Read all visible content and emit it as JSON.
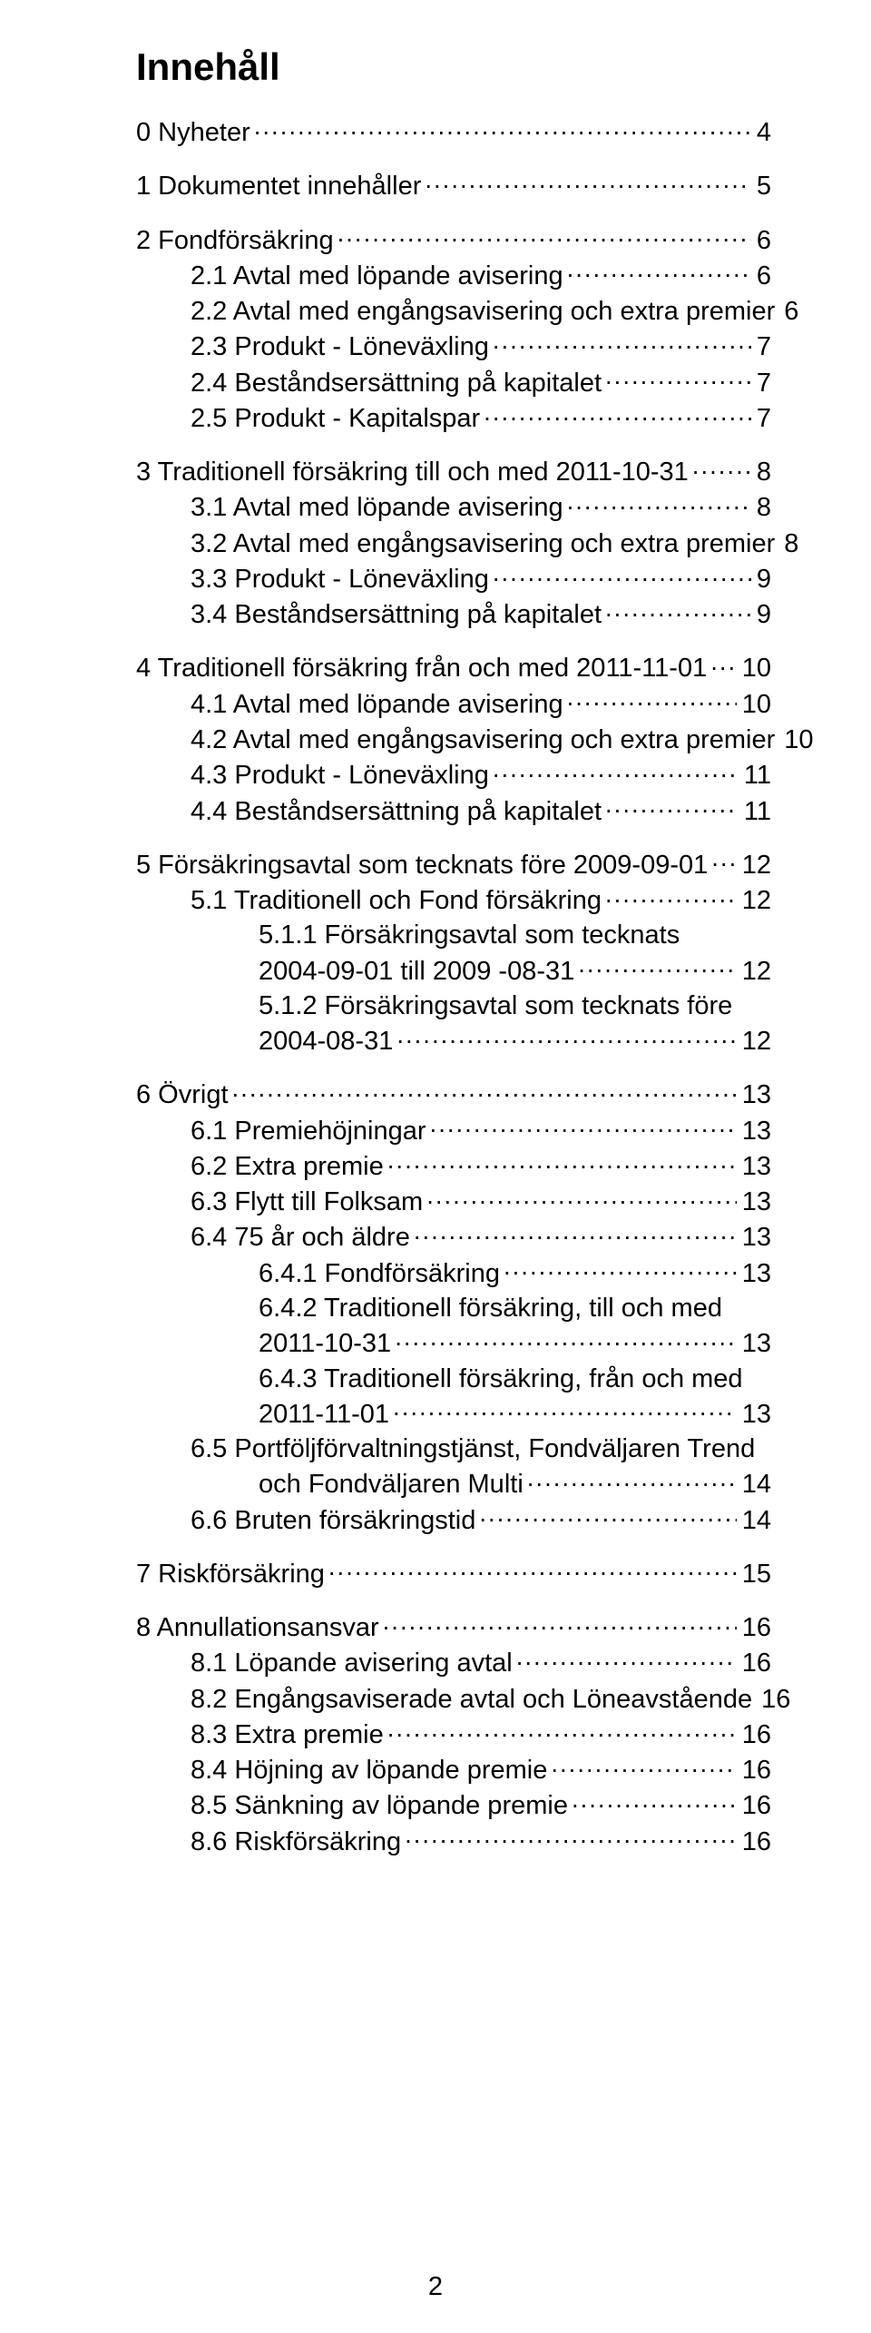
{
  "page_title": "Innehåll",
  "page_number": "2",
  "colors": {
    "text": "#000000",
    "background": "#ffffff"
  },
  "typography": {
    "title_size_pt": 32,
    "body_size_pt": 22,
    "font_family": "Arial"
  },
  "toc": [
    {
      "indent": 0,
      "label": "0  Nyheter",
      "page": "4",
      "spacer_before": false
    },
    {
      "indent": 0,
      "label": "1  Dokumentet innehåller",
      "page": "5",
      "spacer_before": true
    },
    {
      "indent": 0,
      "label": "2  Fondförsäkring",
      "page": "6",
      "spacer_before": true
    },
    {
      "indent": 1,
      "label": "2.1  Avtal med löpande avisering",
      "page": "6"
    },
    {
      "indent": 1,
      "label": "2.2  Avtal med engångsavisering och extra premier",
      "page": "6",
      "tight": true
    },
    {
      "indent": 1,
      "label": "2.3  Produkt - Löneväxling",
      "page": "7"
    },
    {
      "indent": 1,
      "label": "2.4  Beståndsersättning på kapitalet",
      "page": "7"
    },
    {
      "indent": 1,
      "label": "2.5  Produkt - Kapitalspar",
      "page": "7"
    },
    {
      "indent": 0,
      "label": "3  Traditionell försäkring till och med 2011-10-31",
      "page": "8",
      "spacer_before": true
    },
    {
      "indent": 1,
      "label": "3.1  Avtal med löpande avisering",
      "page": "8"
    },
    {
      "indent": 1,
      "label": "3.2  Avtal med engångsavisering och extra premier",
      "page": "8",
      "tight": true
    },
    {
      "indent": 1,
      "label": "3.3  Produkt - Löneväxling",
      "page": "9"
    },
    {
      "indent": 1,
      "label": "3.4  Beståndsersättning på kapitalet",
      "page": "9"
    },
    {
      "indent": 0,
      "label": "4  Traditionell försäkring från och med 2011-11-01",
      "page": "10",
      "spacer_before": true
    },
    {
      "indent": 1,
      "label": "4.1  Avtal med löpande avisering",
      "page": "10"
    },
    {
      "indent": 1,
      "label": "4.2  Avtal med engångsavisering och extra premier",
      "page": "10",
      "nodots": true
    },
    {
      "indent": 1,
      "label": "4.3  Produkt - Löneväxling",
      "page": "11"
    },
    {
      "indent": 1,
      "label": "4.4  Beståndsersättning på kapitalet",
      "page": "11"
    },
    {
      "indent": 0,
      "label": "5  Försäkringsavtal som tecknats före 2009-09-01",
      "page": "12",
      "spacer_before": true
    },
    {
      "indent": 1,
      "label": "5.1  Traditionell och Fond försäkring",
      "page": "12"
    },
    {
      "indent": 2,
      "label": "5.1.1  Försäkringsavtal som tecknats",
      "wrap": "2004-09-01 till 2009 -08-31",
      "page": "12"
    },
    {
      "indent": 2,
      "label": "5.1.2  Försäkringsavtal som tecknats före",
      "wrap": "2004-08-31",
      "page": "12"
    },
    {
      "indent": 0,
      "label": "6  Övrigt",
      "page": "13",
      "spacer_before": true
    },
    {
      "indent": 1,
      "label": "6.1  Premiehöjningar",
      "page": "13"
    },
    {
      "indent": 1,
      "label": "6.2  Extra premie",
      "page": "13"
    },
    {
      "indent": 1,
      "label": "6.3  Flytt till Folksam",
      "page": "13"
    },
    {
      "indent": 1,
      "label": "6.4  75 år och äldre",
      "page": "13"
    },
    {
      "indent": 2,
      "label": "6.4.1  Fondförsäkring",
      "page": "13"
    },
    {
      "indent": 2,
      "label": "6.4.2  Traditionell försäkring, till och med",
      "wrap": "2011-10-31",
      "page": "13"
    },
    {
      "indent": 2,
      "label": "6.4.3  Traditionell försäkring, från och med",
      "wrap": " 2011-11-01",
      "page": "13"
    },
    {
      "indent": 1,
      "label": "6.5  Portföljförvaltningstjänst, Fondväljaren Trend",
      "wrap": "och  Fondväljaren Multi",
      "page": "14"
    },
    {
      "indent": 1,
      "label": "6.6  Bruten försäkringstid",
      "page": "14"
    },
    {
      "indent": 0,
      "label": "7  Riskförsäkring",
      "page": "15",
      "spacer_before": true
    },
    {
      "indent": 0,
      "label": "8  Annullationsansvar",
      "page": "16",
      "spacer_before": true
    },
    {
      "indent": 1,
      "label": "8.1  Löpande avisering avtal",
      "page": "16"
    },
    {
      "indent": 1,
      "label": "8.2  Engångsaviserade avtal och Löneavstående",
      "page": "16"
    },
    {
      "indent": 1,
      "label": "8.3  Extra premie",
      "page": "16"
    },
    {
      "indent": 1,
      "label": "8.4  Höjning av löpande premie",
      "page": "16"
    },
    {
      "indent": 1,
      "label": "8.5  Sänkning av löpande premie",
      "page": "16"
    },
    {
      "indent": 1,
      "label": "8.6  Riskförsäkring",
      "page": "16"
    }
  ]
}
